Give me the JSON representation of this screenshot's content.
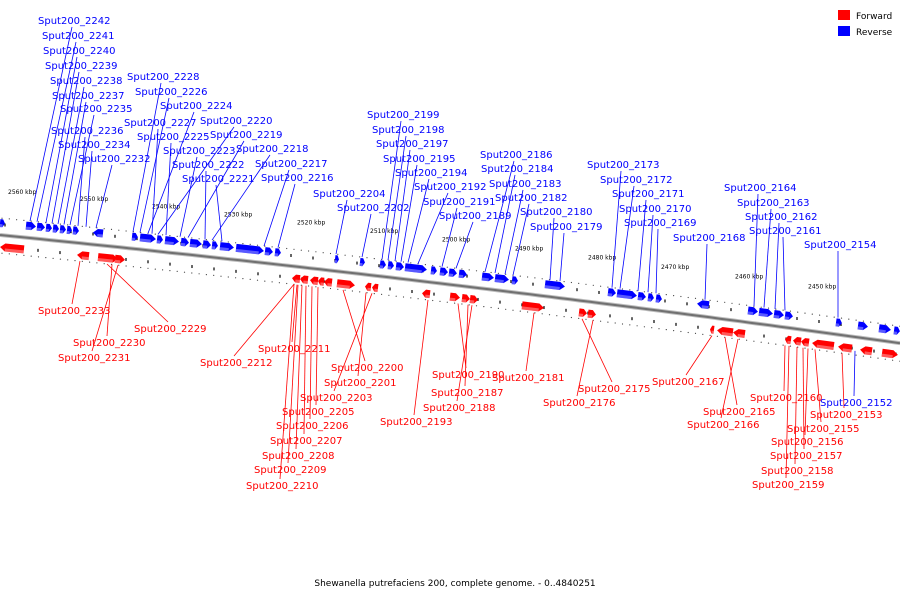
{
  "caption": "Shewanella putrefaciens 200, complete genome. - 0..4840251",
  "legend": [
    {
      "label": "Forward",
      "color": "#ff0000"
    },
    {
      "label": "Reverse",
      "color": "#0000ff"
    }
  ],
  "colors": {
    "forward": "#ff0000",
    "reverse": "#0000ff",
    "backbone": "#808080"
  },
  "scale_labels": [
    "2560 kbp",
    "2550 kbp",
    "2540 kbp",
    "2530 kbp",
    "2520 kbp",
    "2510 kbp",
    "2500 kbp",
    "2490 kbp",
    "2480 kbp",
    "2470 kbp",
    "2460 kbp",
    "2450 kbp"
  ],
  "reverse_labels": [
    "Sput200_2242",
    "Sput200_2241",
    "Sput200_2240",
    "Sput200_2239",
    "Sput200_2238",
    "Sput200_2237",
    "Sput200_2235",
    "Sput200_2236",
    "Sput200_2234",
    "Sput200_2232",
    "Sput200_2228",
    "Sput200_2226",
    "Sput200_2224",
    "Sput200_2227",
    "Sput200_2220",
    "Sput200_2225",
    "Sput200_2219",
    "Sput200_2223",
    "Sput200_2218",
    "Sput200_2222",
    "Sput200_2217",
    "Sput200_2221",
    "Sput200_2216",
    "Sput200_2204",
    "Sput200_2202",
    "Sput200_2199",
    "Sput200_2198",
    "Sput200_2197",
    "Sput200_2195",
    "Sput200_2194",
    "Sput200_2192",
    "Sput200_2191",
    "Sput200_2189",
    "Sput200_2186",
    "Sput200_2184",
    "Sput200_2183",
    "Sput200_2182",
    "Sput200_2180",
    "Sput200_2179",
    "Sput200_2173",
    "Sput200_2172",
    "Sput200_2171",
    "Sput200_2170",
    "Sput200_2169",
    "Sput200_2168",
    "Sput200_2164",
    "Sput200_2163",
    "Sput200_2162",
    "Sput200_2161",
    "Sput200_2154",
    "Sput200_2152"
  ],
  "forward_labels": [
    "Sput200_2233",
    "Sput200_2229",
    "Sput200_2230",
    "Sput200_2231",
    "Sput200_2212",
    "Sput200_2211",
    "Sput200_2200",
    "Sput200_2201",
    "Sput200_2203",
    "Sput200_2205",
    "Sput200_2206",
    "Sput200_2207",
    "Sput200_2208",
    "Sput200_2209",
    "Sput200_2210",
    "Sput200_2190",
    "Sput200_2187",
    "Sput200_2188",
    "Sput200_2193",
    "Sput200_2181",
    "Sput200_2175",
    "Sput200_2176",
    "Sput200_2167",
    "Sput200_2165",
    "Sput200_2166",
    "Sput200_2160",
    "Sput200_2153",
    "Sput200_2155",
    "Sput200_2156",
    "Sput200_2157",
    "Sput200_2158",
    "Sput200_2159"
  ]
}
